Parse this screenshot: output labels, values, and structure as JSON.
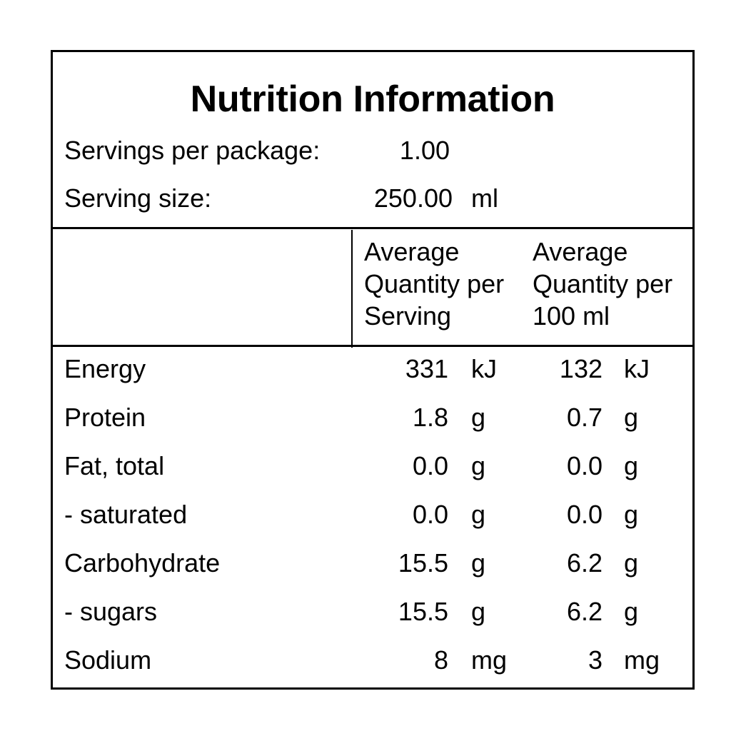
{
  "panel": {
    "title": "Nutrition Information",
    "servings_label": "Servings per package:",
    "servings_value": "1.00",
    "serving_size_label": "Serving size:",
    "serving_size_value": "250.00",
    "serving_size_unit": "ml"
  },
  "columns": {
    "per_serving": [
      "Average",
      "Quantity per",
      "Serving"
    ],
    "per_100": [
      "Average",
      "Quantity per",
      "100 ml"
    ]
  },
  "rows": [
    {
      "name": "Energy",
      "serving": "331",
      "serving_unit": "kJ",
      "per100": "132",
      "per100_unit": "kJ"
    },
    {
      "name": "Protein",
      "serving": "1.8",
      "serving_unit": "g",
      "per100": "0.7",
      "per100_unit": "g"
    },
    {
      "name": "Fat, total",
      "serving": "0.0",
      "serving_unit": "g",
      "per100": "0.0",
      "per100_unit": "g"
    },
    {
      "name": "- saturated",
      "serving": "0.0",
      "serving_unit": "g",
      "per100": "0.0",
      "per100_unit": "g"
    },
    {
      "name": "Carbohydrate",
      "serving": "15.5",
      "serving_unit": "g",
      "per100": "6.2",
      "per100_unit": "g"
    },
    {
      "name": "- sugars",
      "serving": "15.5",
      "serving_unit": "g",
      "per100": "6.2",
      "per100_unit": "g"
    },
    {
      "name": "Sodium",
      "serving": "8",
      "serving_unit": "mg",
      "per100": "3",
      "per100_unit": "mg"
    }
  ]
}
